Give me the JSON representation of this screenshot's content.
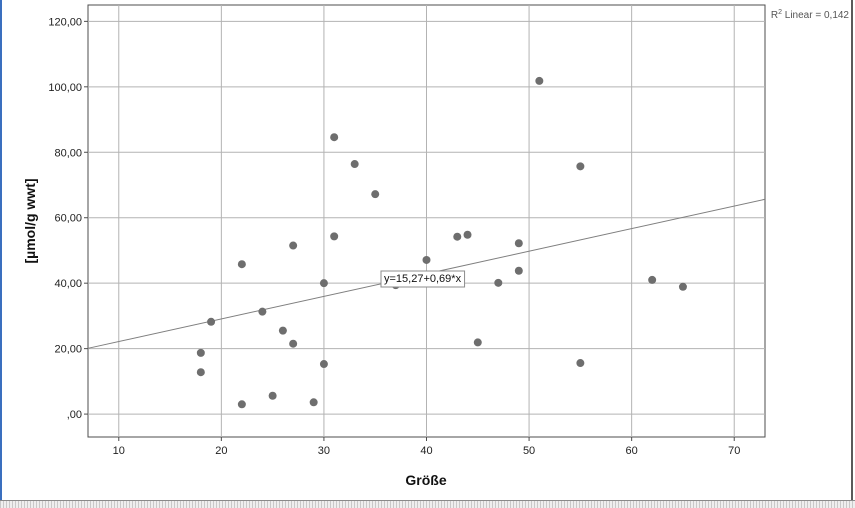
{
  "chart_data": {
    "type": "scatter",
    "xlabel": "Größe",
    "ylabel": "[µmol/g wwt]",
    "xlim": [
      7,
      73
    ],
    "ylim": [
      -7,
      125
    ],
    "x_ticks": [
      10,
      20,
      30,
      40,
      50,
      60,
      70
    ],
    "x_tick_labels": [
      "10",
      "20",
      "30",
      "40",
      "50",
      "60",
      "70"
    ],
    "y_ticks": [
      0,
      20,
      40,
      60,
      80,
      100,
      120
    ],
    "y_tick_labels": [
      ",00",
      "20,00",
      "40,00",
      "60,00",
      "80,00",
      "100,00",
      "120,00"
    ],
    "grid": true,
    "marker_color": "#6e6e6e",
    "line_color": "#7f7f7f",
    "grid_color": "#b3b3b3",
    "points": [
      {
        "x": 18,
        "y": 18.7
      },
      {
        "x": 18,
        "y": 12.8
      },
      {
        "x": 19,
        "y": 28.2
      },
      {
        "x": 22,
        "y": 45.8
      },
      {
        "x": 22,
        "y": 3.0
      },
      {
        "x": 24,
        "y": 31.3
      },
      {
        "x": 25,
        "y": 5.6
      },
      {
        "x": 26,
        "y": 25.5
      },
      {
        "x": 27,
        "y": 51.5
      },
      {
        "x": 27,
        "y": 21.5
      },
      {
        "x": 29,
        "y": 3.6
      },
      {
        "x": 30,
        "y": 40.0
      },
      {
        "x": 30,
        "y": 15.3
      },
      {
        "x": 31,
        "y": 84.6
      },
      {
        "x": 31,
        "y": 54.3
      },
      {
        "x": 33,
        "y": 76.4
      },
      {
        "x": 35,
        "y": 67.2
      },
      {
        "x": 37,
        "y": 39.4
      },
      {
        "x": 40,
        "y": 47.1
      },
      {
        "x": 41,
        "y": 40.2
      },
      {
        "x": 43,
        "y": 54.2
      },
      {
        "x": 44,
        "y": 54.8
      },
      {
        "x": 45,
        "y": 21.9
      },
      {
        "x": 47,
        "y": 40.1
      },
      {
        "x": 49,
        "y": 52.2
      },
      {
        "x": 49,
        "y": 43.8
      },
      {
        "x": 51,
        "y": 101.8
      },
      {
        "x": 55,
        "y": 75.7
      },
      {
        "x": 55,
        "y": 15.6
      },
      {
        "x": 62,
        "y": 41.0
      },
      {
        "x": 65,
        "y": 38.9
      }
    ],
    "fit_line": {
      "intercept": 15.27,
      "slope": 0.69,
      "label": "y=15,27+0,69*x"
    },
    "r2_label": {
      "prefix": "R",
      "sup": "2",
      "text": " Linear = 0,142"
    }
  }
}
